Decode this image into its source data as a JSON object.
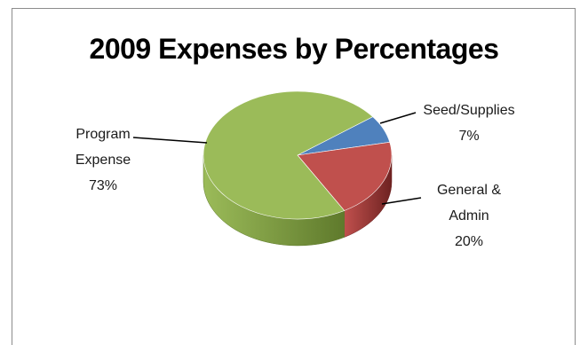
{
  "chart_data": {
    "type": "pie",
    "title": "2009 Expenses by Percentages",
    "slices": [
      {
        "label_lines": [
          "Seed/Supplies",
          "7%"
        ],
        "name": "Seed/Supplies",
        "value": 7,
        "color": "#4f81bd",
        "side_color": "#2d4f7c"
      },
      {
        "label_lines": [
          "General &",
          "Admin",
          "20%"
        ],
        "name": "General & Admin",
        "value": 20,
        "color": "#c0504d",
        "side_color": "#6e2221"
      },
      {
        "label_lines": [
          "Program",
          "Expense",
          "73%"
        ],
        "name": "Program Expense",
        "value": 73,
        "color": "#9bbb59",
        "side_color": "#5f7a2c"
      }
    ],
    "legend": "none",
    "style": "3d"
  }
}
